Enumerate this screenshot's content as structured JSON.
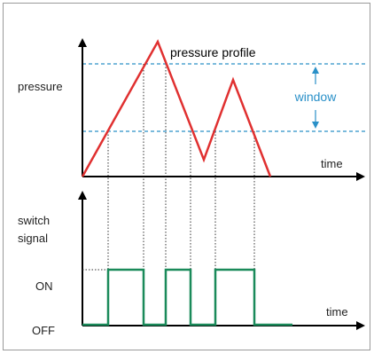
{
  "upper": {
    "title": "pressure profile",
    "y_label": "pressure",
    "x_label": "time",
    "window_label": "window"
  },
  "lower": {
    "y_label_line1": "switch",
    "y_label_line2": "signal",
    "x_label": "time",
    "on_label": "ON",
    "off_label": "OFF"
  },
  "colors": {
    "pressure": "#e03030",
    "signal": "#1a8a5a",
    "window": "#2a90c8",
    "axis": "#000000",
    "guides": "#333333",
    "frame": "#9a9a9a"
  },
  "chart_data": {
    "type": "line",
    "pressure_profile": [
      "rise",
      "peak",
      "fall",
      "trough",
      "rise",
      "peak",
      "fall"
    ],
    "window_crossings": 6,
    "switch_signal_states": [
      "OFF",
      "ON",
      "OFF",
      "ON",
      "OFF",
      "ON",
      "OFF"
    ]
  }
}
